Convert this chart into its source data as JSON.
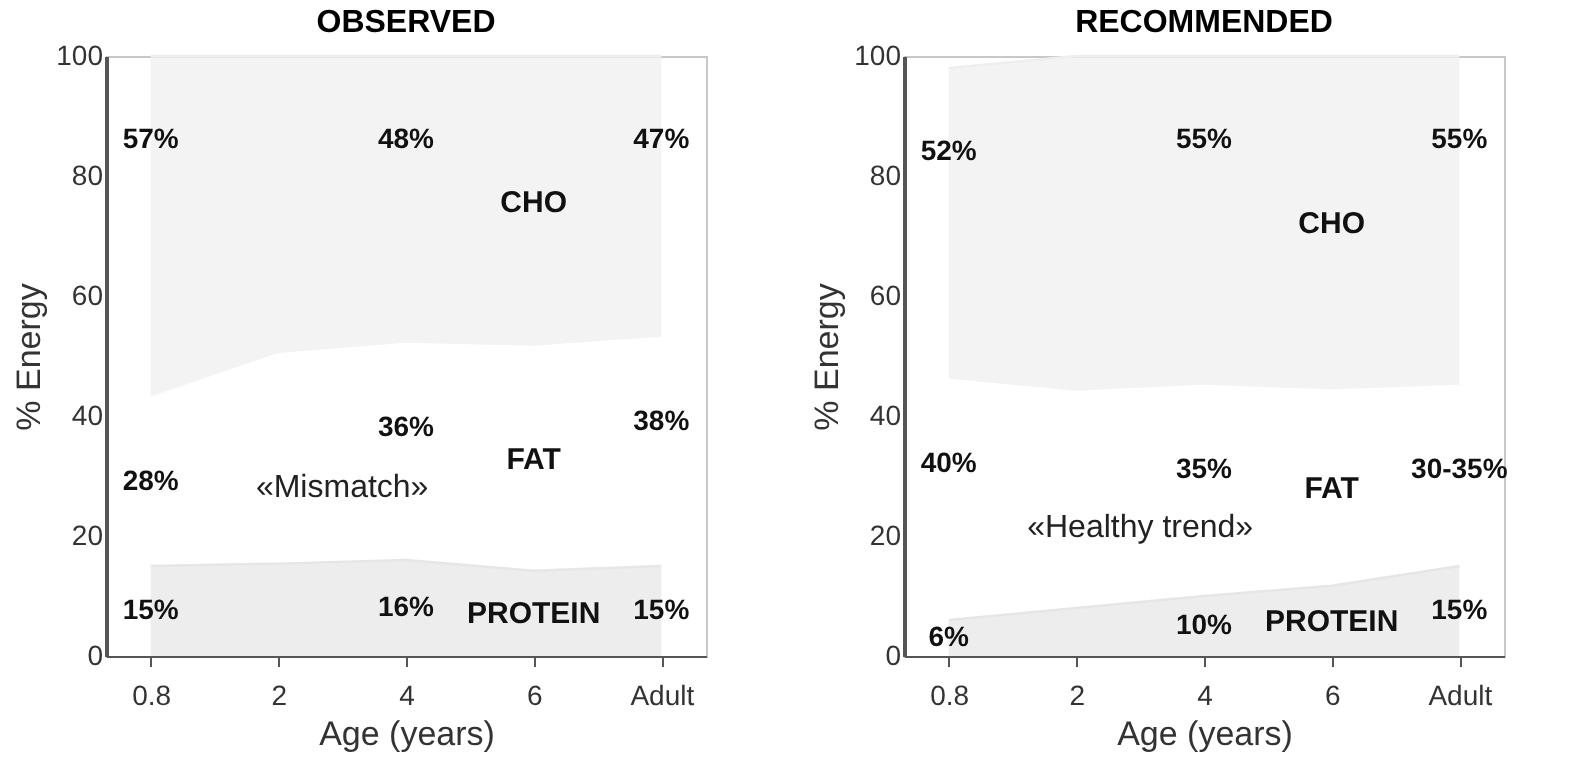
{
  "chart_data": [
    {
      "type": "area",
      "title": "OBSERVED",
      "xlabel": "Age (years)",
      "ylabel": "% Energy",
      "stacked": true,
      "legend": false,
      "grid": false,
      "categories": [
        "0.8",
        "2",
        "4",
        "6",
        "Adult"
      ],
      "ylim": [
        0,
        100
      ],
      "yticks": [
        0,
        20,
        40,
        60,
        80,
        100
      ],
      "series": [
        {
          "name": "PROTEIN",
          "color": "#e6e6e6",
          "values": [
            15,
            15.4,
            16,
            14.2,
            15
          ],
          "value_labels": [
            "15%",
            null,
            "16%",
            null,
            "15%"
          ]
        },
        {
          "name": "FAT",
          "color": "#ffffff",
          "values": [
            28,
            34.9,
            36,
            37.3,
            38
          ],
          "value_labels": [
            "28%",
            null,
            "36%",
            null,
            "38%"
          ]
        },
        {
          "name": "CHO",
          "color": "#eeeeee",
          "values": [
            57,
            49.7,
            48,
            48.5,
            47
          ],
          "value_labels": [
            "57%",
            null,
            "48%",
            null,
            "47%"
          ]
        }
      ],
      "annotations": [
        "«Mismatch»"
      ]
    },
    {
      "type": "area",
      "title": "RECOMMENDED",
      "xlabel": "Age (years)",
      "ylabel": "% Energy",
      "stacked": true,
      "legend": false,
      "grid": false,
      "categories": [
        "0.8",
        "2",
        "4",
        "6",
        "Adult"
      ],
      "ylim": [
        0,
        100
      ],
      "yticks": [
        0,
        20,
        40,
        60,
        80,
        100
      ],
      "series": [
        {
          "name": "PROTEIN",
          "color": "#e6e6e6",
          "values": [
            6,
            8,
            10,
            11.7,
            15
          ],
          "value_labels": [
            "6%",
            null,
            "10%",
            null,
            "15%"
          ]
        },
        {
          "name": "FAT",
          "color": "#ffffff",
          "values": [
            40,
            36,
            35,
            32.5,
            30
          ],
          "value_labels": [
            "40%",
            null,
            "35%",
            null,
            "30-35%"
          ]
        },
        {
          "name": "CHO",
          "color": "#eeeeee",
          "values": [
            52,
            56,
            55,
            55.8,
            55
          ],
          "value_labels": [
            "52%",
            null,
            "55%",
            null,
            "55%"
          ]
        }
      ],
      "annotations": [
        "«Healthy trend»"
      ]
    }
  ]
}
